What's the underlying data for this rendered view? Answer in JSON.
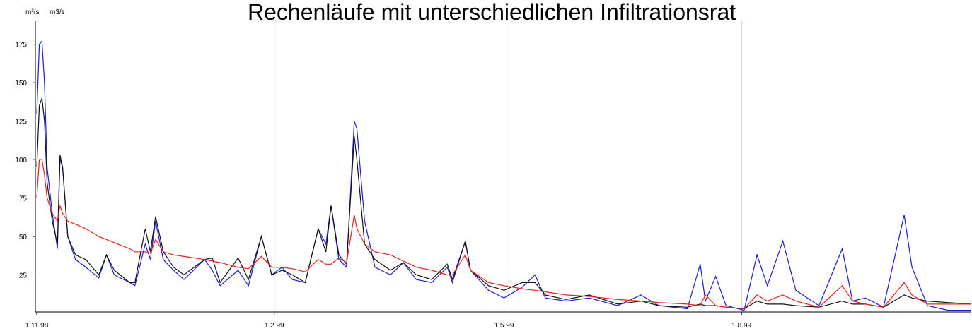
{
  "chart_data": {
    "type": "line",
    "title": "Rechenläufe mit unterschiedlichen Infiltrationsrat",
    "y_units": [
      "m³/s",
      "m3/s"
    ],
    "x": [
      0,
      1,
      2,
      3,
      4,
      6,
      8,
      9,
      10,
      12,
      15,
      19,
      24,
      27,
      30,
      36,
      38,
      42,
      44,
      46,
      49,
      53,
      57,
      65,
      68,
      71,
      78,
      82,
      87,
      91,
      95,
      99,
      104,
      109,
      112,
      114,
      117,
      120,
      123,
      124,
      127,
      131,
      137,
      142,
      147,
      153,
      159,
      161,
      166,
      168,
      175,
      181,
      188,
      193,
      197,
      205,
      214,
      225,
      234,
      241,
      252,
      257,
      259,
      263,
      267,
      274,
      279,
      283,
      289,
      294,
      303,
      312,
      316,
      321,
      328,
      336,
      339,
      345,
      353,
      362
    ],
    "series": [
      {
        "color": "#1c1cdc",
        "values": [
          130,
          175,
          177,
          150,
          95,
          65,
          42,
          100,
          95,
          50,
          35,
          30,
          23,
          38,
          25,
          20,
          18,
          45,
          35,
          60,
          35,
          28,
          22,
          35,
          28,
          18,
          28,
          18,
          50,
          25,
          30,
          22,
          20,
          55,
          45,
          70,
          35,
          30,
          125,
          120,
          60,
          30,
          25,
          33,
          22,
          20,
          30,
          20,
          47,
          28,
          15,
          10,
          17,
          25,
          10,
          8,
          10,
          5,
          12,
          5,
          3,
          32,
          8,
          24,
          5,
          2,
          38,
          18,
          47,
          15,
          5,
          42,
          8,
          10,
          4,
          64,
          30,
          5,
          2,
          2
        ]
      },
      {
        "color": "#111111",
        "values": [
          95,
          135,
          140,
          125,
          85,
          60,
          45,
          103,
          95,
          50,
          38,
          35,
          25,
          38,
          28,
          20,
          20,
          55,
          40,
          63,
          40,
          30,
          25,
          35,
          36,
          20,
          36,
          22,
          50,
          25,
          28,
          25,
          20,
          55,
          40,
          70,
          38,
          32,
          115,
          100,
          45,
          35,
          28,
          33,
          25,
          22,
          32,
          22,
          47,
          28,
          18,
          15,
          20,
          20,
          12,
          9,
          12,
          6,
          8,
          5,
          4,
          6,
          5,
          5,
          4,
          3,
          8,
          6,
          6,
          5,
          4,
          8,
          6,
          6,
          4,
          12,
          10,
          8,
          7,
          6
        ]
      },
      {
        "color": "#e82020",
        "values": [
          75,
          100,
          100,
          90,
          75,
          65,
          60,
          70,
          65,
          60,
          58,
          55,
          50,
          48,
          46,
          42,
          40,
          40,
          39,
          48,
          40,
          38,
          37,
          35,
          34,
          33,
          30,
          29,
          37,
          30,
          30,
          29,
          27,
          35,
          32,
          32,
          36,
          33,
          64,
          55,
          45,
          40,
          38,
          34,
          30,
          28,
          25,
          25,
          38,
          28,
          20,
          18,
          16,
          15,
          14,
          12,
          11,
          9,
          8,
          7,
          6,
          5,
          12,
          5,
          4,
          3,
          12,
          8,
          12,
          8,
          4,
          18,
          8,
          6,
          4,
          20,
          12,
          6,
          6,
          6
        ]
      }
    ],
    "xlim": [
      0,
      362
    ],
    "xticks": [
      {
        "value": 0,
        "label": "1.11.98"
      },
      {
        "value": 92,
        "label": "1.2.99"
      },
      {
        "value": 181,
        "label": "1.5.99"
      },
      {
        "value": 273,
        "label": "1.8.99"
      }
    ],
    "ylim": [
      0,
      190
    ],
    "yticks": [
      25,
      50,
      75,
      100,
      125,
      150,
      175
    ],
    "grid": true
  }
}
